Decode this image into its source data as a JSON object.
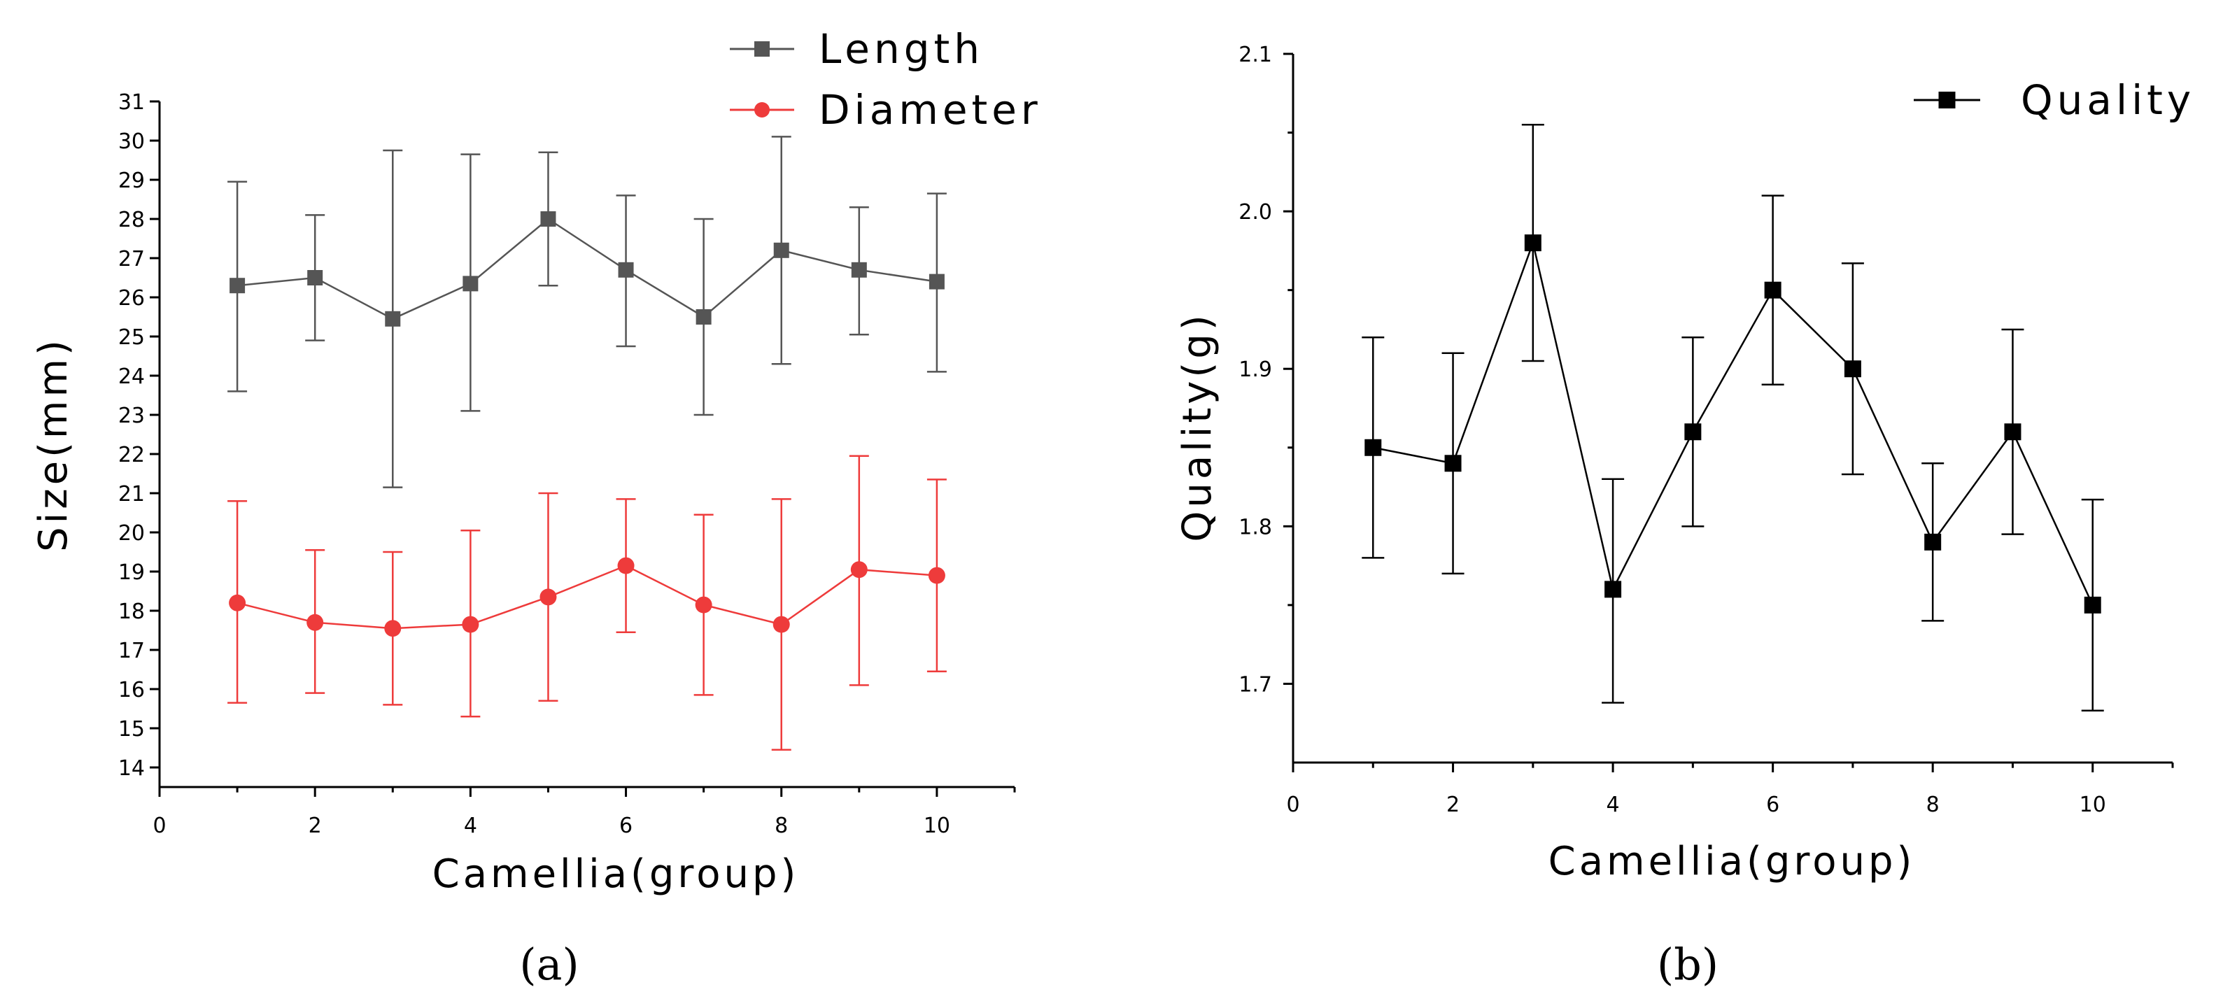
{
  "chart_data": [
    {
      "type": "line",
      "panel_label": "(a)",
      "xlabel": "Camellia(group)",
      "ylabel": "Size(mm)",
      "xlim": [
        0,
        11
      ],
      "ylim": [
        13.5,
        31
      ],
      "xticks": [
        0,
        2,
        4,
        6,
        8,
        10
      ],
      "yticks": [
        14,
        15,
        16,
        17,
        18,
        19,
        20,
        21,
        22,
        23,
        24,
        25,
        26,
        27,
        28,
        29,
        30,
        31
      ],
      "legend_position": "top-right",
      "series": [
        {
          "name": "Length",
          "color": "#555555",
          "marker": "square",
          "x": [
            1,
            2,
            3,
            4,
            5,
            6,
            7,
            8,
            9,
            10
          ],
          "y": [
            26.3,
            26.5,
            25.45,
            26.35,
            28.0,
            26.7,
            25.5,
            27.2,
            26.7,
            26.4
          ],
          "err_high": [
            28.95,
            28.1,
            29.75,
            29.65,
            29.7,
            28.6,
            28.0,
            30.1,
            28.3,
            28.65
          ],
          "err_low": [
            23.6,
            24.9,
            21.15,
            23.1,
            26.3,
            24.75,
            23.0,
            24.3,
            25.05,
            24.1
          ]
        },
        {
          "name": "Diameter",
          "color": "#ee3b3b",
          "marker": "circle",
          "x": [
            1,
            2,
            3,
            4,
            5,
            6,
            7,
            8,
            9,
            10
          ],
          "y": [
            18.2,
            17.7,
            17.55,
            17.65,
            18.35,
            19.15,
            18.15,
            17.65,
            19.05,
            18.9
          ],
          "err_high": [
            20.8,
            19.55,
            19.5,
            20.05,
            21.0,
            20.85,
            20.45,
            20.85,
            21.95,
            21.35
          ],
          "err_low": [
            15.65,
            15.9,
            15.6,
            15.3,
            15.7,
            17.45,
            15.85,
            14.45,
            16.1,
            16.45
          ]
        }
      ]
    },
    {
      "type": "line",
      "panel_label": "(b)",
      "xlabel": "Camellia(group)",
      "ylabel": "Quality(g)",
      "xlim": [
        0,
        11
      ],
      "ylim": [
        1.65,
        2.1
      ],
      "xticks": [
        0,
        2,
        4,
        6,
        8,
        10
      ],
      "yticks": [
        "1.7",
        "1.8",
        "1.9",
        "2.0",
        "2.1"
      ],
      "legend_position": "top-right",
      "series": [
        {
          "name": "Quality",
          "color": "#000000",
          "marker": "square",
          "x": [
            1,
            2,
            3,
            4,
            5,
            6,
            7,
            8,
            9,
            10
          ],
          "y": [
            1.85,
            1.84,
            1.98,
            1.76,
            1.86,
            1.95,
            1.9,
            1.79,
            1.86,
            1.75
          ],
          "err_high": [
            1.92,
            1.91,
            2.055,
            1.83,
            1.92,
            2.01,
            1.967,
            1.84,
            1.925,
            1.817
          ],
          "err_low": [
            1.78,
            1.77,
            1.905,
            1.688,
            1.8,
            1.89,
            1.833,
            1.74,
            1.795,
            1.683
          ]
        }
      ]
    }
  ]
}
